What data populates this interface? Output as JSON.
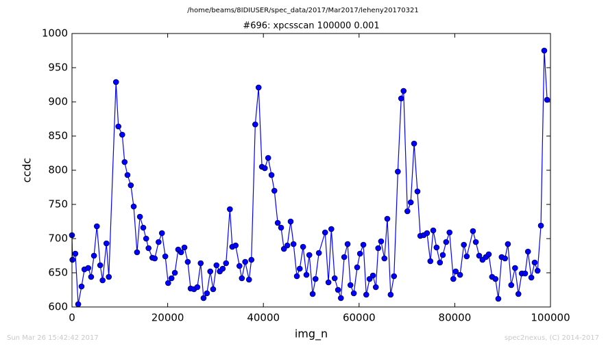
{
  "chart_data": {
    "type": "line",
    "suptitle": "/home/beams/8IDIUSER/spec_data/2017/Mar2017/leheny20170321",
    "title": "#696: xpcsscan 100000 0.001",
    "x_label": "img_n",
    "y_label": "ccdc",
    "footer_left": "Sun Mar 26 15:42:42 2017",
    "footer_right": "spec2nexus, (C) 2014-2017",
    "xlim": [
      0,
      100000
    ],
    "ylim": [
      600,
      1000
    ],
    "xticks": [
      0,
      20000,
      40000,
      60000,
      80000,
      100000
    ],
    "yticks": [
      600,
      650,
      700,
      750,
      800,
      850,
      900,
      950,
      1000
    ],
    "x": [
      0,
      100,
      700,
      1300,
      2000,
      2600,
      3400,
      4000,
      4600,
      5200,
      5900,
      6400,
      7200,
      7700,
      9200,
      9700,
      10500,
      11000,
      11600,
      12300,
      12900,
      13600,
      14200,
      14900,
      15500,
      16000,
      16800,
      17300,
      18100,
      18800,
      19500,
      20100,
      20800,
      21500,
      22200,
      22800,
      23500,
      24200,
      24800,
      25500,
      26200,
      26900,
      27500,
      28200,
      28900,
      29500,
      30200,
      30900,
      31500,
      32200,
      33000,
      33500,
      34200,
      35000,
      35500,
      36200,
      37000,
      37500,
      38300,
      39000,
      39700,
      40300,
      41000,
      41700,
      42300,
      43000,
      43700,
      44300,
      45000,
      45700,
      46300,
      47000,
      47600,
      48300,
      49000,
      49600,
      50300,
      50900,
      51600,
      52900,
      53600,
      54200,
      54900,
      55600,
      56200,
      56900,
      57600,
      58200,
      58900,
      59600,
      60200,
      60900,
      61500,
      62200,
      62900,
      63500,
      64000,
      64600,
      65300,
      65900,
      66600,
      67300,
      68100,
      68800,
      69300,
      70100,
      70800,
      71500,
      72200,
      72800,
      73500,
      74200,
      74900,
      75500,
      76200,
      76900,
      77500,
      78200,
      78900,
      79700,
      80200,
      81100,
      81900,
      82500,
      83800,
      84400,
      85100,
      85800,
      86500,
      87100,
      87800,
      88500,
      89100,
      89800,
      90500,
      91100,
      91800,
      92600,
      93300,
      94000,
      94700,
      95300,
      96000,
      96700,
      97300,
      98000,
      98700,
      99300
    ],
    "series": [
      {
        "color": "#0000ff",
        "marker_edge": "#000000",
        "values": [
          705,
          669,
          678,
          604,
          630,
          655,
          657,
          644,
          675,
          718,
          661,
          639,
          693,
          644,
          929,
          864,
          852,
          812,
          793,
          778,
          747,
          680,
          732,
          716,
          700,
          686,
          672,
          671,
          695,
          708,
          674,
          635,
          642,
          650,
          684,
          680,
          687,
          666,
          627,
          626,
          629,
          664,
          613,
          620,
          652,
          626,
          661,
          652,
          656,
          664,
          743,
          688,
          690,
          660,
          642,
          666,
          640,
          669,
          867,
          921,
          805,
          803,
          818,
          793,
          770,
          723,
          716,
          685,
          690,
          725,
          692,
          645,
          656,
          688,
          647,
          676,
          619,
          641,
          679,
          709,
          636,
          714,
          642,
          625,
          613,
          673,
          692,
          632,
          620,
          658,
          678,
          691,
          618,
          641,
          646,
          629,
          686,
          696,
          671,
          729,
          618,
          645,
          798,
          905,
          916,
          740,
          753,
          839,
          769,
          704,
          705,
          708,
          667,
          712,
          687,
          665,
          676,
          695,
          709,
          641,
          652,
          647,
          691,
          674,
          711,
          695,
          675,
          669,
          673,
          677,
          644,
          641,
          612,
          673,
          671,
          692,
          632,
          657,
          619,
          649,
          649,
          681,
          643,
          665,
          653,
          719,
          975,
          903
        ]
      }
    ]
  }
}
